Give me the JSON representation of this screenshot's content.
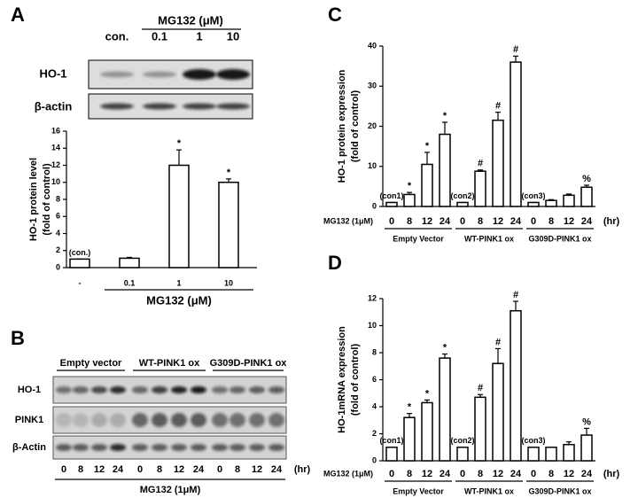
{
  "panel_labels": [
    "A",
    "B",
    "C",
    "D"
  ],
  "blot_a": {
    "header": "MG132 (μM)",
    "lanes": [
      "con.",
      "0.1",
      "1",
      "10"
    ],
    "rows": [
      "HO-1",
      "β-actin"
    ]
  },
  "blot_b": {
    "groups": [
      "Empty vector",
      "WT-PINK1 ox",
      "G309D-PINK1 ox"
    ],
    "lanes": [
      "0",
      "8",
      "12",
      "24"
    ],
    "unit": "(hr)",
    "treatment": "MG132 (1μM)",
    "rows": [
      "HO-1",
      "PINK1",
      "β-Actin"
    ]
  },
  "chart_data": [
    {
      "type": "bar",
      "ylabel": [
        "HO-1 protein level",
        "(fold of control)"
      ],
      "color": "#ffffff",
      "categories": [
        "-",
        "0.1",
        "1",
        "10"
      ],
      "values": [
        1,
        1.1,
        12,
        10
      ],
      "errors": [
        0,
        0.1,
        1.8,
        0.4
      ],
      "annotations": [
        "(con.)",
        null,
        "*",
        "*"
      ],
      "xlabel": "MG132 (μM)",
      "ylim": [
        0,
        16
      ],
      "yticks": [
        0,
        2,
        4,
        6,
        8,
        10,
        12,
        14,
        16
      ]
    },
    {
      "type": "bar",
      "ylabel": [
        "HO-1 protein expression",
        "(fold of control)"
      ],
      "color": "#ffffff",
      "x_prefix": "MG132 (1μM)",
      "x_unit": "(hr)",
      "groups": [
        {
          "name": "Empty Vector",
          "categories": [
            "0",
            "8",
            "12",
            "24"
          ],
          "values": [
            1,
            3,
            10.5,
            18
          ],
          "errors": [
            0,
            0.5,
            3,
            3
          ],
          "annotations": [
            "(con1)",
            "*",
            "*",
            "*"
          ]
        },
        {
          "name": "WT-PINK1 ox",
          "categories": [
            "0",
            "8",
            "12",
            "24"
          ],
          "values": [
            1,
            8.8,
            21.5,
            36
          ],
          "errors": [
            0,
            0.3,
            2,
            1.5
          ],
          "annotations": [
            "(con2)",
            "#",
            "#",
            "#"
          ]
        },
        {
          "name": "G309D-PINK1 ox",
          "categories": [
            "0",
            "8",
            "12",
            "24"
          ],
          "values": [
            1,
            1.5,
            2.8,
            4.8
          ],
          "errors": [
            0,
            0.2,
            0.3,
            0.5
          ],
          "annotations": [
            "(con3)",
            null,
            null,
            "%"
          ]
        }
      ],
      "ylim": [
        0,
        40
      ],
      "yticks": [
        0,
        10,
        20,
        30,
        40
      ]
    },
    {
      "type": "bar",
      "ylabel": [
        "HO-1mRNA expression",
        "(fold of control)"
      ],
      "color": "#ffffff",
      "x_prefix": "MG132 (1μM)",
      "x_unit": "(hr)",
      "groups": [
        {
          "name": "Empty Vector",
          "categories": [
            "0",
            "8",
            "12",
            "24"
          ],
          "values": [
            1,
            3.2,
            4.3,
            7.6
          ],
          "errors": [
            0,
            0.3,
            0.2,
            0.3
          ],
          "annotations": [
            "(con1)",
            "*",
            "*",
            "*"
          ]
        },
        {
          "name": "WT-PINK1 ox",
          "categories": [
            "0",
            "8",
            "12",
            "24"
          ],
          "values": [
            1,
            4.7,
            7.2,
            11.1
          ],
          "errors": [
            0,
            0.2,
            1.1,
            0.7
          ],
          "annotations": [
            "(con2)",
            "#",
            "#",
            "#"
          ]
        },
        {
          "name": "G309D-PINK1 ox",
          "categories": [
            "0",
            "8",
            "12",
            "24"
          ],
          "values": [
            1,
            1,
            1.2,
            1.9
          ],
          "errors": [
            0,
            0,
            0.2,
            0.5
          ],
          "annotations": [
            "(con3)",
            null,
            null,
            "%"
          ]
        }
      ],
      "ylim": [
        0,
        12
      ],
      "yticks": [
        0,
        2,
        4,
        6,
        8,
        10,
        12
      ]
    }
  ]
}
